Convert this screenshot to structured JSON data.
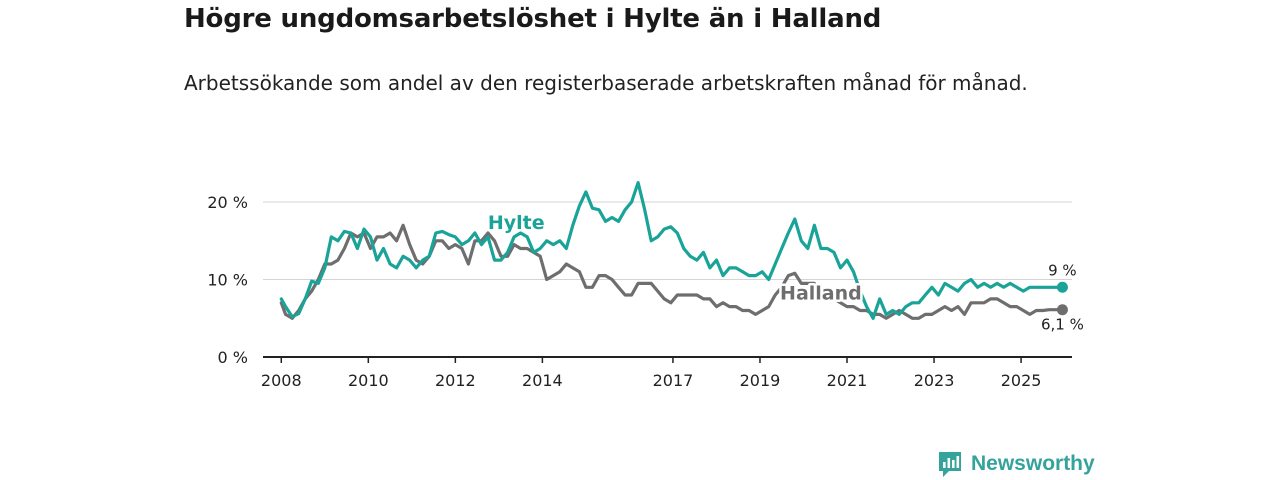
{
  "title": "Högre ungdomsarbetslöshet i Hylte än i Halland",
  "subtitle": "Arbetssökande som andel av den registerbaserade arbetskraften månad för månad.",
  "brand": {
    "name": "Newsworthy",
    "icon": "bar-chart-logo-icon",
    "color": "#34a39b"
  },
  "chart_data": {
    "type": "line",
    "title": "Högre ungdomsarbetslöshet i Hylte än i Halland",
    "xlabel": "",
    "ylabel": "",
    "xlim": [
      2007.58,
      2026.17
    ],
    "ylim": [
      0,
      20
    ],
    "grid": true,
    "y_ticks": [
      0,
      10,
      20
    ],
    "y_tick_labels": [
      "0 %",
      "10 %",
      "20 %"
    ],
    "x_ticks": [
      2008,
      2010,
      2012,
      2014,
      2017,
      2019,
      2021,
      2023,
      2025
    ],
    "x_tick_labels": [
      "2008",
      "2010",
      "2012",
      "2014",
      "2017",
      "2019",
      "2021",
      "2023",
      "2025"
    ],
    "series": [
      {
        "name": "Hylte",
        "color": "#1aa398",
        "end_label": "9 %",
        "end_value": 9,
        "x": [
          2008.0,
          2008.1,
          2008.25,
          2008.4,
          2008.55,
          2008.7,
          2008.85,
          2009.0,
          2009.15,
          2009.3,
          2009.45,
          2009.6,
          2009.75,
          2009.9,
          2010.05,
          2010.2,
          2010.35,
          2010.5,
          2010.65,
          2010.8,
          2010.95,
          2011.1,
          2011.25,
          2011.4,
          2011.55,
          2011.7,
          2011.85,
          2012.0,
          2012.15,
          2012.3,
          2012.45,
          2012.6,
          2012.75,
          2012.9,
          2013.05,
          2013.2,
          2013.35,
          2013.5,
          2013.65,
          2013.8,
          2013.95,
          2014.1,
          2014.25,
          2014.4,
          2014.55,
          2014.7,
          2014.85,
          2015.0,
          2015.15,
          2015.3,
          2015.45,
          2015.6,
          2015.75,
          2015.9,
          2016.05,
          2016.2,
          2016.35,
          2016.5,
          2016.65,
          2016.8,
          2016.95,
          2017.1,
          2017.25,
          2017.4,
          2017.55,
          2017.7,
          2017.85,
          2018.0,
          2018.15,
          2018.3,
          2018.45,
          2018.6,
          2018.75,
          2018.9,
          2019.05,
          2019.2,
          2019.35,
          2019.5,
          2019.65,
          2019.8,
          2019.95,
          2020.1,
          2020.25,
          2020.4,
          2020.55,
          2020.7,
          2020.85,
          2021.0,
          2021.15,
          2021.3,
          2021.45,
          2021.6,
          2021.75,
          2021.9,
          2022.05,
          2022.2,
          2022.35,
          2022.5,
          2022.65,
          2022.8,
          2022.95,
          2023.1,
          2023.25,
          2023.4,
          2023.55,
          2023.7,
          2023.85,
          2024.0,
          2024.15,
          2024.3,
          2024.45,
          2024.6,
          2024.75,
          2024.9,
          2025.05,
          2025.2,
          2025.35,
          2025.5,
          2025.65,
          2025.8,
          2025.95
        ],
        "values": [
          7.5,
          6.5,
          5.2,
          5.6,
          7.5,
          9.8,
          9.5,
          11.5,
          15.5,
          15.0,
          16.2,
          16.0,
          14.0,
          16.5,
          15.5,
          12.5,
          14.0,
          12.0,
          11.5,
          13.0,
          12.5,
          11.5,
          12.5,
          13.0,
          16.0,
          16.2,
          15.8,
          15.5,
          14.5,
          15.0,
          16.0,
          14.5,
          15.5,
          12.5,
          12.5,
          13.5,
          15.5,
          16.0,
          15.5,
          13.5,
          14.0,
          15.0,
          14.5,
          15.0,
          14.0,
          17.0,
          19.5,
          21.3,
          19.2,
          19.0,
          17.5,
          18.0,
          17.5,
          19.0,
          20.0,
          22.5,
          19.0,
          15.0,
          15.5,
          16.5,
          16.8,
          16.0,
          14.0,
          13.0,
          12.5,
          13.5,
          11.5,
          12.5,
          10.5,
          11.5,
          11.5,
          11.0,
          10.5,
          10.5,
          11.0,
          10.0,
          12.0,
          14.0,
          16.0,
          17.8,
          15.0,
          14.0,
          17.0,
          14.0,
          14.0,
          13.5,
          11.5,
          12.5,
          11.0,
          8.5,
          6.5,
          5.0,
          7.5,
          5.5,
          6.0,
          5.5,
          6.5,
          7.0,
          7.0,
          8.0,
          9.0,
          8.0,
          9.5,
          9.0,
          8.5,
          9.5,
          10.0,
          9.0,
          9.5,
          9.0,
          9.5,
          9.0,
          9.5,
          9.0,
          8.5,
          9.0,
          9.0,
          9.0,
          9.0,
          9.0,
          9.0
        ]
      },
      {
        "name": "Halland",
        "color": "#6e6e6e",
        "end_label": "6,1 %",
        "end_value": 6.1,
        "x": [
          2008.0,
          2008.1,
          2008.25,
          2008.4,
          2008.55,
          2008.7,
          2008.85,
          2009.0,
          2009.15,
          2009.3,
          2009.45,
          2009.6,
          2009.75,
          2009.9,
          2010.05,
          2010.2,
          2010.35,
          2010.5,
          2010.65,
          2010.8,
          2010.95,
          2011.1,
          2011.25,
          2011.4,
          2011.55,
          2011.7,
          2011.85,
          2012.0,
          2012.15,
          2012.3,
          2012.45,
          2012.6,
          2012.75,
          2012.9,
          2013.05,
          2013.2,
          2013.35,
          2013.5,
          2013.65,
          2013.8,
          2013.95,
          2014.1,
          2014.25,
          2014.4,
          2014.55,
          2014.7,
          2014.85,
          2015.0,
          2015.15,
          2015.3,
          2015.45,
          2015.6,
          2015.75,
          2015.9,
          2016.05,
          2016.2,
          2016.35,
          2016.5,
          2016.65,
          2016.8,
          2016.95,
          2017.1,
          2017.25,
          2017.4,
          2017.55,
          2017.7,
          2017.85,
          2018.0,
          2018.15,
          2018.3,
          2018.45,
          2018.6,
          2018.75,
          2018.9,
          2019.05,
          2019.2,
          2019.35,
          2019.5,
          2019.65,
          2019.8,
          2019.95,
          2020.1,
          2020.25,
          2020.4,
          2020.55,
          2020.7,
          2020.85,
          2021.0,
          2021.15,
          2021.3,
          2021.45,
          2021.6,
          2021.75,
          2021.9,
          2022.05,
          2022.2,
          2022.35,
          2022.5,
          2022.65,
          2022.8,
          2022.95,
          2023.1,
          2023.25,
          2023.4,
          2023.55,
          2023.7,
          2023.85,
          2024.0,
          2024.15,
          2024.3,
          2024.45,
          2024.6,
          2024.75,
          2024.9,
          2025.05,
          2025.2,
          2025.35,
          2025.5,
          2025.65,
          2025.8,
          2025.95
        ],
        "values": [
          7.0,
          5.5,
          5.0,
          6.0,
          7.5,
          8.5,
          10.0,
          12.0,
          12.0,
          12.5,
          14.0,
          16.0,
          15.5,
          16.0,
          14.0,
          15.5,
          15.5,
          16.0,
          15.0,
          17.0,
          14.5,
          12.5,
          12.0,
          13.0,
          15.0,
          15.0,
          14.0,
          14.5,
          14.0,
          12.0,
          15.0,
          15.0,
          16.0,
          15.0,
          13.0,
          13.0,
          14.5,
          14.0,
          14.0,
          13.5,
          13.0,
          10.0,
          10.5,
          11.0,
          12.0,
          11.5,
          11.0,
          9.0,
          9.0,
          10.5,
          10.5,
          10.0,
          9.0,
          8.0,
          8.0,
          9.5,
          9.5,
          9.5,
          8.5,
          7.5,
          7.0,
          8.0,
          8.0,
          8.0,
          8.0,
          7.5,
          7.5,
          6.5,
          7.0,
          6.5,
          6.5,
          6.0,
          6.0,
          5.5,
          6.0,
          6.5,
          8.0,
          9.0,
          10.5,
          10.8,
          9.5,
          9.5,
          9.5,
          8.0,
          7.5,
          7.5,
          7.0,
          6.5,
          6.5,
          6.0,
          6.0,
          5.5,
          5.5,
          5.0,
          5.5,
          6.0,
          5.5,
          5.0,
          5.0,
          5.5,
          5.5,
          6.0,
          6.5,
          6.0,
          6.5,
          5.5,
          7.0,
          7.0,
          7.0,
          7.5,
          7.5,
          7.0,
          6.5,
          6.5,
          6.0,
          5.5,
          6.0,
          6.0,
          6.1,
          6.1,
          6.1
        ]
      }
    ]
  }
}
